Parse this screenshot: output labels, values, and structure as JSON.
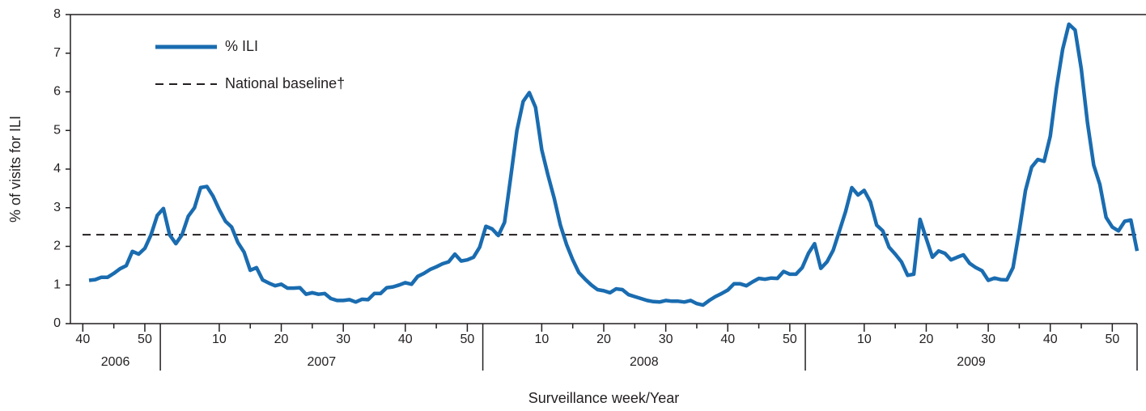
{
  "chart_data": {
    "type": "line",
    "x_label": "Surveillance week/Year",
    "y_label": "% of visits for ILI",
    "x": [
      41,
      42,
      43,
      44,
      45,
      46,
      47,
      48,
      49,
      50,
      51,
      52,
      53,
      54,
      55,
      56,
      57,
      58,
      59,
      60,
      61,
      62,
      63,
      64,
      65,
      66,
      67,
      68,
      69,
      70,
      71,
      72,
      73,
      74,
      75,
      76,
      77,
      78,
      79,
      80,
      81,
      82,
      83,
      84,
      85,
      86,
      87,
      88,
      89,
      90,
      91,
      92,
      93,
      94,
      95,
      96,
      97,
      98,
      99,
      100,
      101,
      102,
      103,
      104,
      105,
      106,
      107,
      108,
      109,
      110,
      111,
      112,
      113,
      114,
      115,
      116,
      117,
      118,
      119,
      120,
      121,
      122,
      123,
      124,
      125,
      126,
      127,
      128,
      129,
      130,
      131,
      132,
      133,
      134,
      135,
      136,
      137,
      138,
      139,
      140,
      141,
      142,
      143,
      144,
      145,
      146,
      147,
      148,
      149,
      150,
      151,
      152,
      153,
      154,
      155,
      156,
      157,
      158,
      159,
      160,
      161,
      162,
      163,
      164,
      165,
      166,
      167,
      168,
      169,
      170,
      171,
      172,
      173,
      174,
      175,
      176,
      177,
      178,
      179,
      180,
      181,
      182,
      183,
      184,
      185,
      186,
      187,
      188,
      189,
      190,
      191,
      192,
      193,
      194,
      195,
      196,
      197,
      198,
      199,
      200,
      201,
      202,
      203,
      204,
      205,
      206,
      207,
      208,
      209,
      210
    ],
    "series": [
      {
        "name": "% ILI",
        "color": "#1a6cb0",
        "values": [
          1.12,
          1.14,
          1.2,
          1.2,
          1.3,
          1.42,
          1.5,
          1.87,
          1.8,
          1.95,
          2.3,
          2.8,
          2.98,
          2.3,
          2.07,
          2.3,
          2.78,
          3.0,
          3.52,
          3.55,
          3.3,
          2.95,
          2.65,
          2.5,
          2.1,
          1.85,
          1.38,
          1.45,
          1.13,
          1.05,
          0.98,
          1.02,
          0.92,
          0.92,
          0.93,
          0.76,
          0.8,
          0.76,
          0.78,
          0.65,
          0.6,
          0.6,
          0.62,
          0.56,
          0.63,
          0.62,
          0.78,
          0.78,
          0.93,
          0.95,
          1.0,
          1.06,
          1.02,
          1.22,
          1.3,
          1.4,
          1.47,
          1.55,
          1.6,
          1.8,
          1.62,
          1.65,
          1.72,
          1.98,
          2.52,
          2.45,
          2.28,
          2.62,
          3.8,
          5.0,
          5.75,
          5.98,
          5.6,
          4.5,
          3.85,
          3.25,
          2.55,
          2.05,
          1.65,
          1.32,
          1.15,
          1.0,
          0.88,
          0.85,
          0.8,
          0.9,
          0.88,
          0.75,
          0.7,
          0.65,
          0.6,
          0.57,
          0.56,
          0.6,
          0.58,
          0.58,
          0.56,
          0.6,
          0.52,
          0.48,
          0.6,
          0.7,
          0.78,
          0.87,
          1.03,
          1.03,
          0.98,
          1.08,
          1.17,
          1.15,
          1.18,
          1.17,
          1.35,
          1.28,
          1.28,
          1.45,
          1.82,
          2.07,
          1.43,
          1.6,
          1.9,
          2.4,
          2.9,
          3.52,
          3.33,
          3.45,
          3.15,
          2.55,
          2.4,
          1.98,
          1.8,
          1.6,
          1.25,
          1.28,
          2.7,
          2.2,
          1.72,
          1.88,
          1.82,
          1.65,
          1.72,
          1.78,
          1.56,
          1.45,
          1.37,
          1.12,
          1.18,
          1.14,
          1.13,
          1.45,
          2.4,
          3.45,
          4.05,
          4.25,
          4.2,
          4.85,
          6.1,
          7.1,
          7.75,
          7.6,
          6.6,
          5.2,
          4.1,
          3.6,
          2.75,
          2.5,
          2.4,
          2.65,
          2.68,
          1.88
        ]
      }
    ],
    "baseline": {
      "name": "National baseline†",
      "value": 2.3,
      "color": "#231f20"
    },
    "xlim": [
      38,
      210
    ],
    "xticks": [
      {
        "value": 40,
        "label": "40"
      },
      {
        "value": 50,
        "label": "50"
      },
      {
        "value": 62,
        "label": "10"
      },
      {
        "value": 72,
        "label": "20"
      },
      {
        "value": 82,
        "label": "30"
      },
      {
        "value": 92,
        "label": "40"
      },
      {
        "value": 102,
        "label": "50"
      },
      {
        "value": 114,
        "label": "10"
      },
      {
        "value": 124,
        "label": "20"
      },
      {
        "value": 134,
        "label": "30"
      },
      {
        "value": 144,
        "label": "40"
      },
      {
        "value": 154,
        "label": "50"
      },
      {
        "value": 166,
        "label": "10"
      },
      {
        "value": 176,
        "label": "20"
      },
      {
        "value": 186,
        "label": "30"
      },
      {
        "value": 196,
        "label": "40"
      },
      {
        "value": 206,
        "label": "50"
      }
    ],
    "years": [
      "2006",
      "2007",
      "2008",
      "2009"
    ],
    "ylim": [
      0,
      8
    ],
    "yticks": [
      0,
      1,
      2,
      3,
      4,
      5,
      6,
      7,
      8
    ]
  }
}
